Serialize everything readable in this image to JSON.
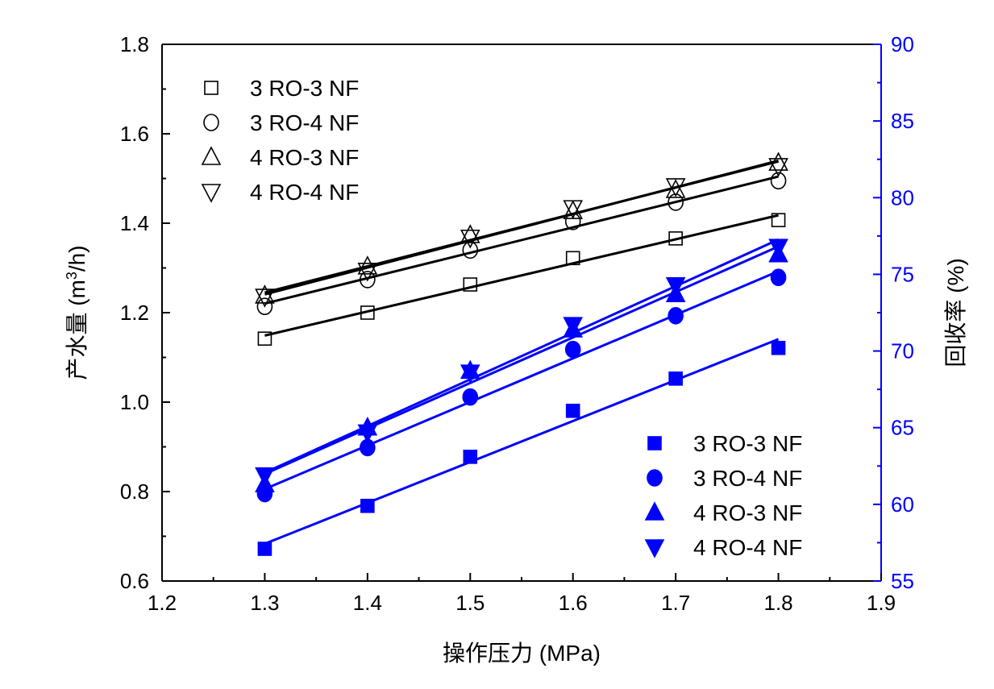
{
  "chart_data": {
    "type": "scatter",
    "xlabel": "操作压力 (MPa)",
    "ylabel_left": "产水量 (m3/h)",
    "ylabel_left_parts": {
      "main": "产水量 (m",
      "sup": "3",
      "tail": "/h)"
    },
    "ylabel_right": "回收率 (%)",
    "xlim": [
      1.2,
      1.9
    ],
    "ylim_left": [
      0.6,
      1.8
    ],
    "ylim_right": [
      55,
      90
    ],
    "xticks": [
      "1.2",
      "1.3",
      "1.4",
      "1.5",
      "1.6",
      "1.7",
      "1.8",
      "1.9"
    ],
    "yticks_left": [
      "0.6",
      "0.8",
      "1.0",
      "1.2",
      "1.4",
      "1.6",
      "1.8"
    ],
    "yticks_right": [
      "55",
      "60",
      "65",
      "70",
      "75",
      "80",
      "85",
      "90"
    ],
    "x": [
      1.3,
      1.4,
      1.5,
      1.6,
      1.7,
      1.8
    ],
    "colors": {
      "left": "#000000",
      "right": "#0000ff"
    },
    "legend_left_position": "top-left",
    "legend_right_position": "bottom-right",
    "series_left": [
      {
        "name": "3 RO-3 NF",
        "marker": "square-open",
        "values": [
          1.142,
          1.2,
          1.263,
          1.322,
          1.366,
          1.407
        ]
      },
      {
        "name": "3 RO-4 NF",
        "marker": "circle-open",
        "values": [
          1.214,
          1.274,
          1.34,
          1.404,
          1.447,
          1.495
        ]
      },
      {
        "name": "4 RO-3 NF",
        "marker": "triangle-up-open",
        "values": [
          1.238,
          1.303,
          1.373,
          1.427,
          1.474,
          1.535
        ]
      },
      {
        "name": "4 RO-4 NF",
        "marker": "triangle-down-open",
        "values": [
          1.236,
          1.294,
          1.368,
          1.434,
          1.483,
          1.528
        ]
      }
    ],
    "series_right": [
      {
        "name": "3 RO-3 NF",
        "marker": "square",
        "values": [
          57.1,
          59.9,
          63.1,
          66.1,
          68.2,
          70.2
        ]
      },
      {
        "name": "3 RO-4 NF",
        "marker": "circle",
        "values": [
          60.7,
          63.7,
          67.0,
          70.1,
          72.3,
          74.8
        ]
      },
      {
        "name": "4 RO-3 NF",
        "marker": "triangle-up",
        "values": [
          61.3,
          65.0,
          68.7,
          71.4,
          73.7,
          76.3
        ]
      },
      {
        "name": "4 RO-4 NF",
        "marker": "triangle-down",
        "values": [
          61.9,
          64.7,
          68.6,
          71.7,
          74.3,
          76.8
        ]
      }
    ]
  }
}
